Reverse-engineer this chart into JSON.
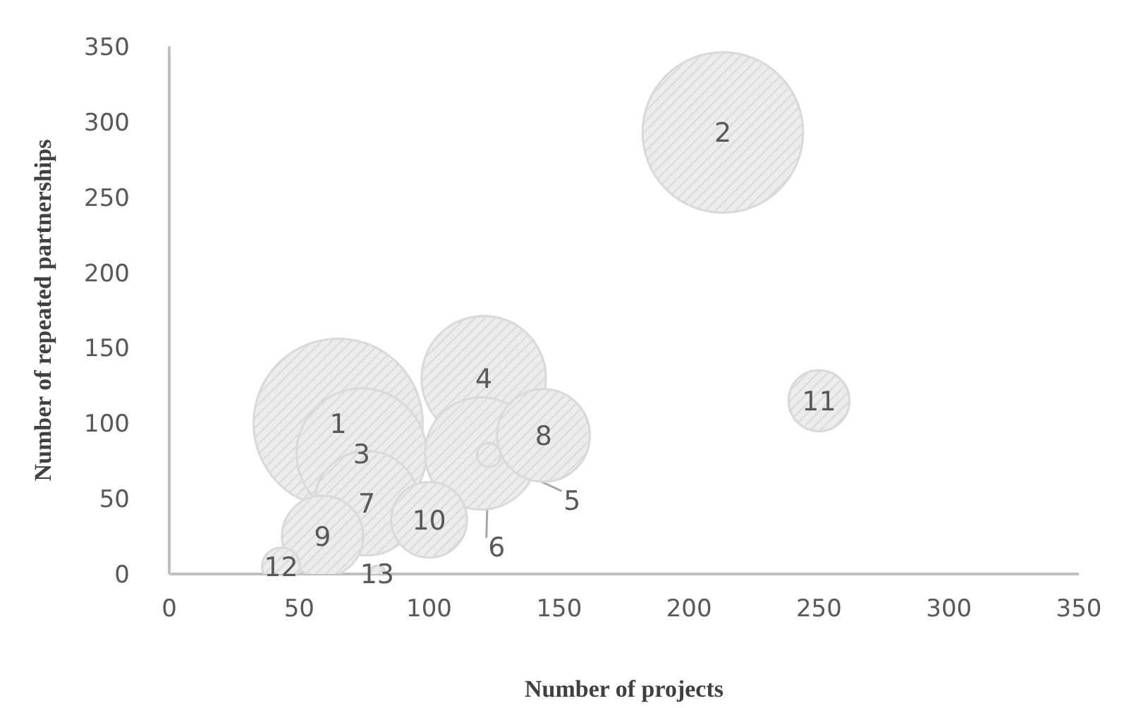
{
  "chart_data": {
    "type": "bubble",
    "xlabel": "Number of projects",
    "ylabel": "Number of repeated partnerships",
    "x": [
      65,
      213,
      74,
      121,
      120,
      123,
      76,
      144,
      59,
      100,
      250,
      43,
      80
    ],
    "values": [
      100,
      293,
      80,
      130,
      80,
      79,
      47,
      92,
      25,
      36,
      115,
      5,
      0
    ],
    "sizes": [
      1,
      0.9,
      0.59,
      0.54,
      0.44,
      0.02,
      0.38,
      0.3,
      0.23,
      0.2,
      0.13,
      0.05,
      0.01
    ],
    "color": "#d9d9d9",
    "xlim": [
      0,
      350
    ],
    "xticks": [
      0,
      50,
      100,
      150,
      200,
      250,
      300,
      350
    ],
    "ylim": [
      0,
      350
    ],
    "yticks": [
      0,
      50,
      100,
      150,
      200,
      250,
      300,
      350
    ],
    "grid": false,
    "legend": false,
    "annotations": [
      {
        "text": "1",
        "x": 65,
        "y": 100
      },
      {
        "text": "2",
        "x": 213,
        "y": 293
      },
      {
        "text": "3",
        "x": 74,
        "y": 80
      },
      {
        "text": "4",
        "x": 121,
        "y": 130
      },
      {
        "text": "5",
        "x": 120,
        "y": 80
      },
      {
        "text": "6",
        "x": 123,
        "y": 79
      },
      {
        "text": "7",
        "x": 76,
        "y": 47
      },
      {
        "text": "8",
        "x": 144,
        "y": 92
      },
      {
        "text": "9",
        "x": 59,
        "y": 25
      },
      {
        "text": "10",
        "x": 100,
        "y": 36
      },
      {
        "text": "11",
        "x": 250,
        "y": 115
      },
      {
        "text": "12",
        "x": 43,
        "y": 5
      },
      {
        "text": "13",
        "x": 80,
        "y": 0
      }
    ]
  }
}
